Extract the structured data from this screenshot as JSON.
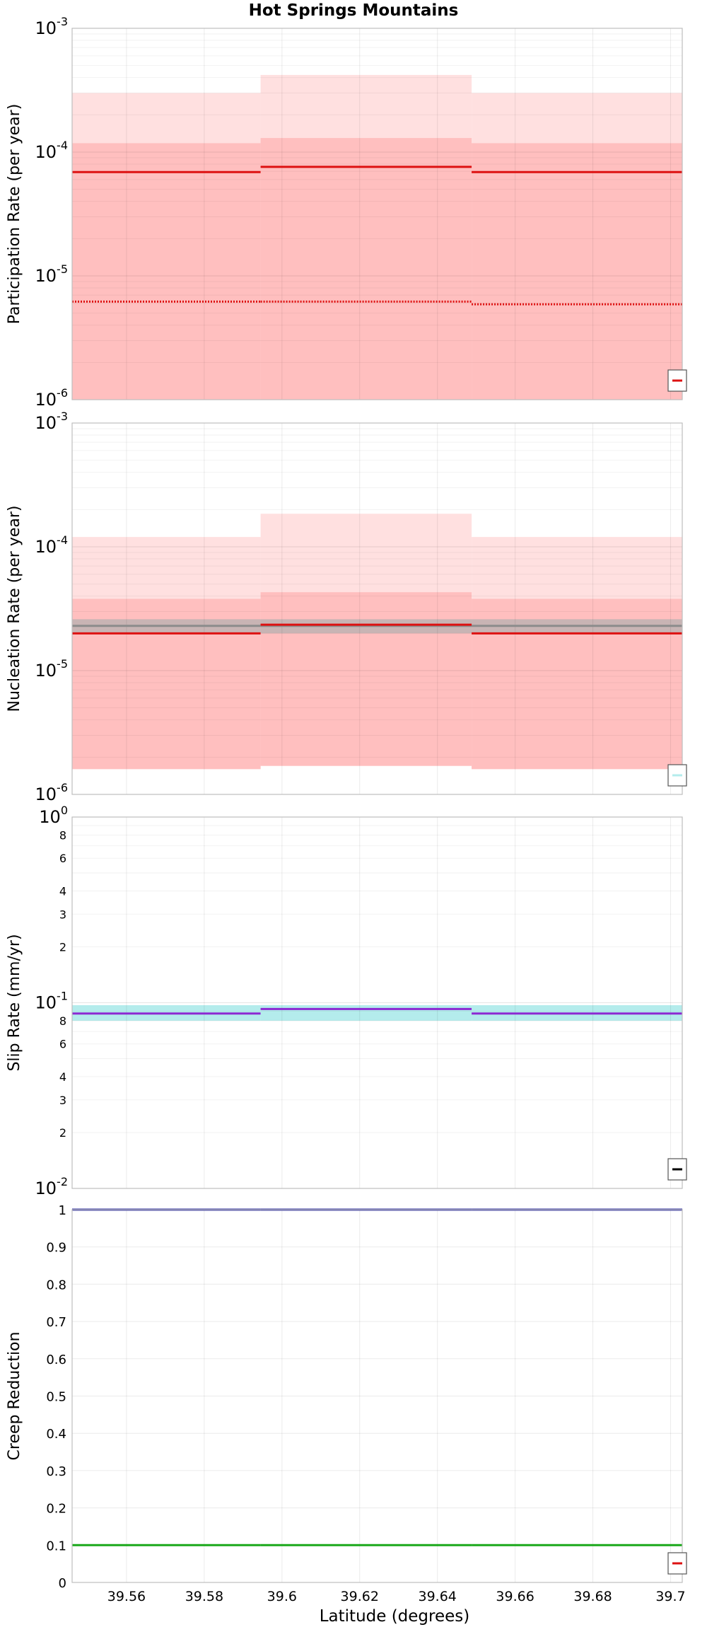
{
  "figure_title": "Hot Springs Mountains",
  "xlabel": "Latitude (degrees)",
  "x_ticks": [
    "39.56",
    "39.58",
    "39.6",
    "39.62",
    "39.64",
    "39.66",
    "39.68",
    "39.7"
  ],
  "x_tick_values": [
    39.56,
    39.58,
    39.6,
    39.62,
    39.64,
    39.66,
    39.68,
    39.7
  ],
  "xlim": [
    39.546,
    39.703
  ],
  "colors": {
    "red": "#dd1111",
    "light_red": "#ffe0e0",
    "mid_red": "#ffbfbf",
    "gray_band": "#c8b4b4",
    "gray_line": "#8c8c8c",
    "cyan_band": "#b4ecec",
    "purple": "#8c2ad2",
    "blue": "#3030a0",
    "green": "#1aa81a",
    "grid": "#e8e8e8"
  },
  "chart_data": [
    {
      "type": "line",
      "ylabel": "Participation Rate (per year)",
      "yscale": "log",
      "ylim": [
        1e-06,
        0.001
      ],
      "y_ticks": [
        {
          "base": "10",
          "exp": "-6",
          "value": 1e-06
        },
        {
          "base": "10",
          "exp": "-5",
          "value": 1e-05
        },
        {
          "base": "10",
          "exp": "-4",
          "value": 0.0001
        },
        {
          "base": "10",
          "exp": "-3",
          "value": 0.001
        }
      ],
      "segments": [
        {
          "x": [
            39.546,
            39.5945
          ]
        },
        {
          "x": [
            39.5945,
            39.6488
          ]
        },
        {
          "x": [
            39.6488,
            39.703
          ]
        }
      ],
      "bands": [
        {
          "color": "light_red",
          "lower": [
            1e-06,
            1e-06,
            1e-06
          ],
          "upper": [
            0.0003,
            0.00042,
            0.0003
          ]
        },
        {
          "color": "mid_red",
          "lower": [
            1e-06,
            1e-06,
            1e-06
          ],
          "upper": [
            0.000118,
            0.00013,
            0.000118
          ]
        }
      ],
      "series": [
        {
          "color": "red",
          "style": "solid",
          "values": [
            6.9e-05,
            7.6e-05,
            6.9e-05
          ]
        },
        {
          "color": "red",
          "style": "dotted",
          "values": [
            6.2e-06,
            6.2e-06,
            5.9e-06
          ]
        }
      ],
      "legend": {
        "position": "bottom-right",
        "color": "red"
      }
    },
    {
      "type": "line",
      "ylabel": "Nucleation Rate (per year)",
      "yscale": "log",
      "ylim": [
        1e-06,
        0.001
      ],
      "y_ticks": [
        {
          "base": "10",
          "exp": "-6",
          "value": 1e-06
        },
        {
          "base": "10",
          "exp": "-5",
          "value": 1e-05
        },
        {
          "base": "10",
          "exp": "-4",
          "value": 0.0001
        },
        {
          "base": "10",
          "exp": "-3",
          "value": 0.001
        }
      ],
      "segments": [
        {
          "x": [
            39.546,
            39.5945
          ]
        },
        {
          "x": [
            39.5945,
            39.6488
          ]
        },
        {
          "x": [
            39.6488,
            39.703
          ]
        }
      ],
      "bands": [
        {
          "color": "light_red",
          "lower": [
            1.6e-06,
            1.7e-06,
            1.6e-06
          ],
          "upper": [
            0.00012,
            0.000185,
            0.00012
          ]
        },
        {
          "color": "mid_red",
          "lower": [
            1.6e-06,
            1.7e-06,
            1.6e-06
          ],
          "upper": [
            3.8e-05,
            4.3e-05,
            3.8e-05
          ]
        },
        {
          "color": "gray_band",
          "lower": [
            2e-05,
            2e-05,
            2e-05
          ],
          "upper": [
            2.6e-05,
            2.6e-05,
            2.6e-05
          ]
        }
      ],
      "series": [
        {
          "color": "gray_line",
          "style": "solid",
          "values": [
            2.3e-05,
            2.3e-05,
            2.3e-05
          ]
        },
        {
          "color": "red",
          "style": "solid",
          "values": [
            2e-05,
            2.35e-05,
            2e-05
          ]
        }
      ],
      "legend": {
        "position": "bottom-right",
        "color": "cyan_band"
      }
    },
    {
      "type": "line",
      "ylabel": "Slip Rate (mm/yr)",
      "yscale": "log",
      "ylim": [
        0.01,
        1
      ],
      "y_ticks": [
        {
          "base": "10",
          "exp": "-2",
          "value": 0.01
        },
        {
          "base": "10",
          "exp": "-1",
          "value": 0.1
        },
        {
          "base": "10",
          "exp": "0",
          "value": 1
        }
      ],
      "minor_ticks": [
        {
          "label": "2",
          "value": 0.02
        },
        {
          "label": "3",
          "value": 0.03
        },
        {
          "label": "4",
          "value": 0.04
        },
        {
          "label": "6",
          "value": 0.06
        },
        {
          "label": "8",
          "value": 0.08
        },
        {
          "label": "2",
          "value": 0.2
        },
        {
          "label": "3",
          "value": 0.3
        },
        {
          "label": "4",
          "value": 0.4
        },
        {
          "label": "6",
          "value": 0.6
        },
        {
          "label": "8",
          "value": 0.8
        }
      ],
      "segments": [
        {
          "x": [
            39.546,
            39.5945
          ]
        },
        {
          "x": [
            39.5945,
            39.6488
          ]
        },
        {
          "x": [
            39.6488,
            39.703
          ]
        }
      ],
      "bands": [
        {
          "color": "cyan_band",
          "lower": [
            0.08,
            0.08,
            0.08
          ],
          "upper": [
            0.097,
            0.097,
            0.097
          ]
        }
      ],
      "series": [
        {
          "color": "purple",
          "style": "solid",
          "values": [
            0.0875,
            0.0925,
            0.0875
          ]
        }
      ],
      "legend": {
        "position": "bottom-right",
        "color": "#000000"
      }
    },
    {
      "type": "line",
      "ylabel": "Creep Reduction",
      "yscale": "linear",
      "ylim": [
        0,
        1
      ],
      "y_ticks": [
        {
          "base": "0",
          "exp": "",
          "value": 0
        },
        {
          "base": "0.1",
          "exp": "",
          "value": 0.1
        },
        {
          "base": "0.2",
          "exp": "",
          "value": 0.2
        },
        {
          "base": "0.3",
          "exp": "",
          "value": 0.3
        },
        {
          "base": "0.4",
          "exp": "",
          "value": 0.4
        },
        {
          "base": "0.5",
          "exp": "",
          "value": 0.5
        },
        {
          "base": "0.6",
          "exp": "",
          "value": 0.6
        },
        {
          "base": "0.7",
          "exp": "",
          "value": 0.7
        },
        {
          "base": "0.8",
          "exp": "",
          "value": 0.8
        },
        {
          "base": "0.9",
          "exp": "",
          "value": 0.9
        },
        {
          "base": "1",
          "exp": "",
          "value": 1
        }
      ],
      "segments": [
        {
          "x": [
            39.546,
            39.5945
          ]
        },
        {
          "x": [
            39.5945,
            39.6488
          ]
        },
        {
          "x": [
            39.6488,
            39.703
          ]
        }
      ],
      "bands": [],
      "series": [
        {
          "color": "blue",
          "style": "solid",
          "values": [
            1.0,
            1.0,
            1.0
          ]
        },
        {
          "color": "green",
          "style": "solid",
          "values": [
            0.1,
            0.1,
            0.1
          ]
        }
      ],
      "legend": {
        "position": "bottom-right",
        "color": "red"
      }
    }
  ]
}
